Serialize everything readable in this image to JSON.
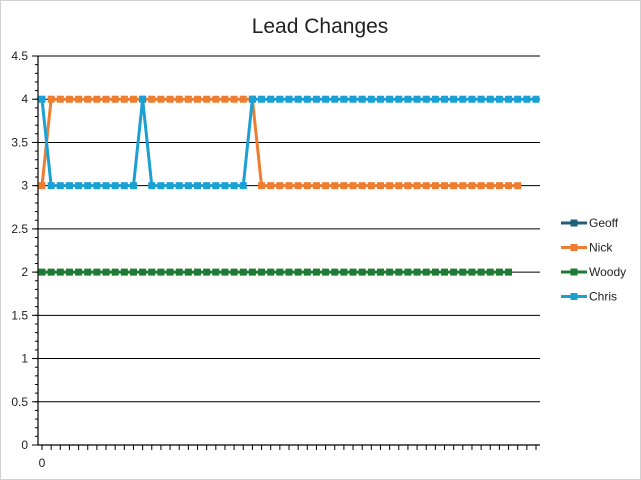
{
  "chart_data": {
    "type": "line",
    "title": "Lead Changes",
    "xlabel": "",
    "ylabel": "",
    "ylim": [
      0,
      4.5
    ],
    "ytick_step": 0.5,
    "y_ticks": [
      "0",
      "0.5",
      "1",
      "1.5",
      "2",
      "2.5",
      "3",
      "3.5",
      "4",
      "4.5"
    ],
    "x_tick_labels": [
      "0"
    ],
    "x_count": 55,
    "grid": "horizontal major lines",
    "legend": "right",
    "series": [
      {
        "name": "Geoff",
        "color": "#1f5f7a",
        "values": []
      },
      {
        "name": "Nick",
        "color": "#ed7d31",
        "values": [
          3,
          4,
          4,
          4,
          4,
          4,
          4,
          4,
          4,
          4,
          4,
          4,
          4,
          4,
          4,
          4,
          4,
          4,
          4,
          4,
          4,
          4,
          4,
          4,
          3,
          3,
          3,
          3,
          3,
          3,
          3,
          3,
          3,
          3,
          3,
          3,
          3,
          3,
          3,
          3,
          3,
          3,
          3,
          3,
          3,
          3,
          3,
          3,
          3,
          3,
          3,
          3,
          3
        ]
      },
      {
        "name": "Woody",
        "color": "#1e7b34",
        "values": [
          2,
          2,
          2,
          2,
          2,
          2,
          2,
          2,
          2,
          2,
          2,
          2,
          2,
          2,
          2,
          2,
          2,
          2,
          2,
          2,
          2,
          2,
          2,
          2,
          2,
          2,
          2,
          2,
          2,
          2,
          2,
          2,
          2,
          2,
          2,
          2,
          2,
          2,
          2,
          2,
          2,
          2,
          2,
          2,
          2,
          2,
          2,
          2,
          2,
          2,
          2,
          2
        ]
      },
      {
        "name": "Chris",
        "color": "#1aa0d3",
        "values": [
          4,
          3,
          3,
          3,
          3,
          3,
          3,
          3,
          3,
          3,
          3,
          4,
          3,
          3,
          3,
          3,
          3,
          3,
          3,
          3,
          3,
          3,
          3,
          4,
          4,
          4,
          4,
          4,
          4,
          4,
          4,
          4,
          4,
          4,
          4,
          4,
          4,
          4,
          4,
          4,
          4,
          4,
          4,
          4,
          4,
          4,
          4,
          4,
          4,
          4,
          4,
          4,
          4,
          4,
          4
        ]
      }
    ]
  }
}
